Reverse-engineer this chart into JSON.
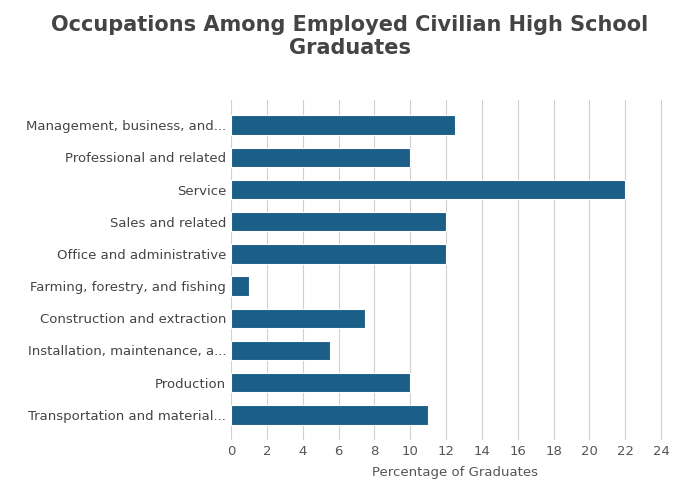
{
  "title": "Occupations Among Employed Civilian High School\nGraduates",
  "categories": [
    "Management, business, and...",
    "Professional and related",
    "Service",
    "Sales and related",
    "Office and administrative",
    "Farming, forestry, and fishing",
    "Construction and extraction",
    "Installation, maintenance, a...",
    "Production",
    "Transportation and material..."
  ],
  "values": [
    12.5,
    10.0,
    22.0,
    12.0,
    12.0,
    1.0,
    7.5,
    5.5,
    10.0,
    11.0
  ],
  "bar_color": "#1b5e87",
  "xlabel": "Percentage of Graduates",
  "xlim": [
    0,
    25
  ],
  "xticks": [
    0,
    2,
    4,
    6,
    8,
    10,
    12,
    14,
    16,
    18,
    20,
    22,
    24
  ],
  "background_color": "#ffffff",
  "title_fontsize": 15,
  "label_fontsize": 9.5,
  "tick_fontsize": 9.5,
  "grid_color": "#d0d0d0"
}
